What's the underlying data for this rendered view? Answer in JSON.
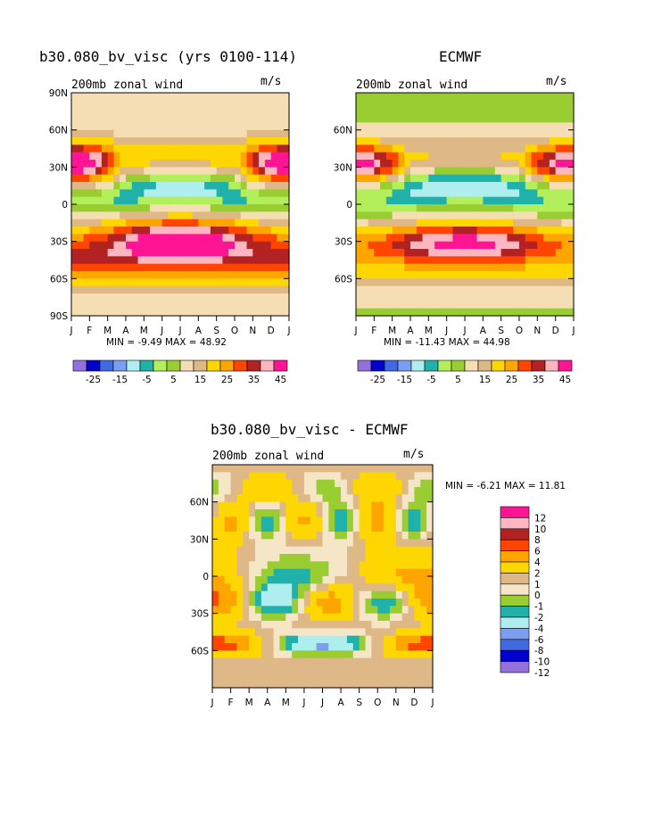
{
  "colors": {
    "wind": [
      "#9370db",
      "#0000cd",
      "#4169e1",
      "#7a9ef0",
      "#afeeee",
      "#20b2aa",
      "#b3ee5b",
      "#9acd32",
      "#f5deb3",
      "#deb887",
      "#ffd700",
      "#ffa500",
      "#ff4500",
      "#b22222",
      "#ffb6c1",
      "#ff1493"
    ],
    "diff": [
      "#9370db",
      "#0000cd",
      "#4169e1",
      "#7a9ef0",
      "#afeeee",
      "#20b2aa",
      "#9acd32",
      "#f5e6c8",
      "#deb887",
      "#ffd700",
      "#ffa500",
      "#ff4500",
      "#b22222",
      "#ffb6c1",
      "#ff1493"
    ]
  },
  "chart_data": [
    {
      "type": "contour",
      "title": "b30.080_bv_visc (yrs 0100-114)",
      "left_label": "200mb zonal wind",
      "right_label": "m/s",
      "x_ticks": [
        "J",
        "F",
        "M",
        "A",
        "M",
        "J",
        "J",
        "A",
        "S",
        "O",
        "N",
        "D",
        "J"
      ],
      "y_ticks": [
        "90N",
        "60N",
        "30N",
        "0",
        "30S",
        "60S",
        "90S"
      ],
      "min_label": "MIN =   -9.49 MAX =   48.92",
      "min": -9.49,
      "max": 48.92,
      "colorbar_labels": [
        "-25",
        "-15",
        "-5",
        "5",
        "15",
        "25",
        "35",
        "45"
      ]
    },
    {
      "type": "contour",
      "title": "ECMWF",
      "left_label": "200mb zonal wind",
      "right_label": "m/s",
      "x_ticks": [
        "J",
        "F",
        "M",
        "A",
        "M",
        "J",
        "J",
        "A",
        "S",
        "O",
        "N",
        "D",
        "J"
      ],
      "y_ticks": [
        "60N",
        "30N",
        "0",
        "30S",
        "60S"
      ],
      "min_label": "MIN =  -11.43 MAX =   44.98",
      "min": -11.43,
      "max": 44.98,
      "colorbar_labels": [
        "-25",
        "-15",
        "-5",
        "5",
        "15",
        "25",
        "35",
        "45"
      ]
    },
    {
      "type": "contour",
      "title": "b30.080_bv_visc - ECMWF",
      "left_label": "200mb zonal wind",
      "right_label": "m/s",
      "x_ticks": [
        "J",
        "F",
        "M",
        "A",
        "M",
        "J",
        "J",
        "A",
        "S",
        "O",
        "N",
        "D",
        "J"
      ],
      "y_ticks": [
        "60N",
        "30N",
        "0",
        "30S",
        "60S"
      ],
      "min_label": "MIN =   -6.21 MAX =   11.81",
      "min": -6.21,
      "max": 11.81,
      "colorbar_labels": [
        "12",
        "10",
        "8",
        "6",
        "4",
        "2",
        "1",
        "0",
        "-1",
        "-2",
        "-4",
        "-6",
        "-8",
        "-10",
        "-12"
      ]
    }
  ]
}
